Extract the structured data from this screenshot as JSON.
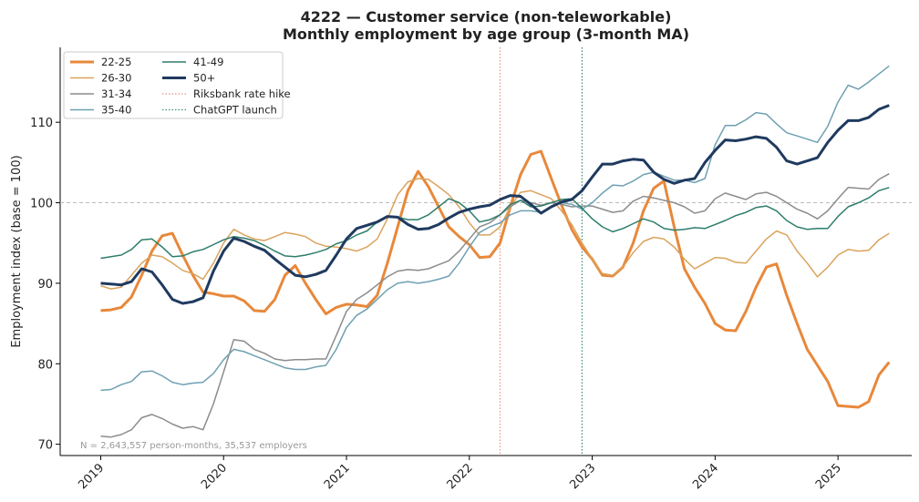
{
  "chart_data": {
    "type": "line",
    "title": "4222 — Customer service (non-teleworkable)",
    "subtitle": "Monthly employment by age group (3-month MA)",
    "ylabel": "Employment index (base = 100)",
    "note": "N = 2,643,557 person-months, 35,537 employers",
    "x": [
      2019,
      2019.083,
      2019.167,
      2019.25,
      2019.333,
      2019.417,
      2019.5,
      2019.583,
      2019.667,
      2019.75,
      2019.833,
      2019.917,
      2020,
      2020.083,
      2020.167,
      2020.25,
      2020.333,
      2020.417,
      2020.5,
      2020.583,
      2020.667,
      2020.75,
      2020.833,
      2020.917,
      2021,
      2021.083,
      2021.167,
      2021.25,
      2021.333,
      2021.417,
      2021.5,
      2021.583,
      2021.667,
      2021.75,
      2021.833,
      2021.917,
      2022,
      2022.083,
      2022.167,
      2022.25,
      2022.333,
      2022.417,
      2022.5,
      2022.583,
      2022.667,
      2022.75,
      2022.833,
      2022.917,
      2023,
      2023.083,
      2023.167,
      2023.25,
      2023.333,
      2023.417,
      2023.5,
      2023.583,
      2023.667,
      2023.75,
      2023.833,
      2023.917,
      2024,
      2024.083,
      2024.167,
      2024.25,
      2024.333,
      2024.417,
      2024.5,
      2024.583,
      2024.667,
      2024.75,
      2024.833,
      2024.917,
      2025,
      2025.083,
      2025.167,
      2025.25,
      2025.333,
      2025.417
    ],
    "series": [
      {
        "name": "22-25",
        "color": "#e8883a",
        "linewidth": 3,
        "values": [
          86.6,
          86.7,
          87,
          88.3,
          91,
          94,
          95.9,
          96.2,
          93.5,
          91,
          88.9,
          88.7,
          88.4,
          88.4,
          87.8,
          86.6,
          86.5,
          88,
          91,
          92.2,
          90,
          88,
          86.2,
          87,
          87.4,
          87.3,
          87.1,
          88.5,
          92.5,
          97,
          101.5,
          103.9,
          102,
          99.5,
          97,
          95.8,
          94.8,
          93.2,
          93.3,
          95,
          99.5,
          103.5,
          106,
          106.4,
          103,
          99.7,
          96.7,
          94.5,
          93,
          91,
          90.9,
          92,
          95,
          99,
          101.8,
          102.7,
          97,
          91.8,
          89.5,
          87.5,
          85,
          84.2,
          84.1,
          86.5,
          89.5,
          92,
          92.4,
          88.5,
          85,
          81.8,
          79.8,
          77.8,
          74.8,
          74.7,
          74.6,
          75.3,
          78.6,
          80.2
        ]
      },
      {
        "name": "26-30",
        "color": "#dba35c",
        "linewidth": 1.5,
        "values": [
          89.7,
          89.3,
          89.5,
          91,
          92.5,
          93.5,
          93.3,
          92.5,
          91.6,
          91.2,
          90.5,
          92.5,
          95,
          96.7,
          96,
          95.5,
          95.3,
          95.8,
          96.3,
          96.1,
          95.8,
          95,
          94.6,
          94.5,
          94.3,
          94,
          94.5,
          95.5,
          98,
          101,
          102.6,
          103,
          102.9,
          102,
          101,
          99.5,
          97.5,
          96,
          96,
          97,
          99.5,
          101.3,
          101.5,
          101,
          100.5,
          99,
          97.3,
          95,
          93,
          91.2,
          91,
          92,
          93.8,
          95.2,
          95.7,
          95.5,
          94.5,
          93,
          91.8,
          92.5,
          93.2,
          93.1,
          92.6,
          92.5,
          94,
          95.5,
          96.5,
          96,
          94,
          92.5,
          90.8,
          92,
          93.5,
          94.2,
          94,
          94.1,
          95.4,
          96.2
        ]
      },
      {
        "name": "31-34",
        "color": "#8c8c8c",
        "linewidth": 1.5,
        "values": [
          71,
          70.9,
          71.2,
          71.8,
          73.3,
          73.7,
          73.2,
          72.5,
          72,
          72.2,
          71.8,
          75,
          79,
          83,
          82.8,
          81.8,
          81.3,
          80.6,
          80.4,
          80.5,
          80.5,
          80.6,
          80.6,
          83.5,
          86.5,
          88,
          88.8,
          89.8,
          90.8,
          91.5,
          91.7,
          91.6,
          91.8,
          92.3,
          92.8,
          94,
          95.5,
          97,
          97.5,
          98.5,
          99.5,
          100.3,
          100,
          99.7,
          100,
          99.8,
          99.5,
          99.6,
          99.6,
          99.2,
          98.8,
          99,
          100.2,
          100.8,
          100.6,
          100.3,
          100,
          99.5,
          98.7,
          99,
          100.5,
          101.2,
          100.8,
          100.4,
          101.1,
          101.3,
          100.8,
          100,
          99.2,
          98.7,
          98,
          99,
          100.5,
          101.9,
          101.8,
          101.7,
          102.9,
          103.6
        ]
      },
      {
        "name": "35-40",
        "color": "#6fa0b2",
        "linewidth": 1.5,
        "values": [
          76.7,
          76.8,
          77.4,
          77.8,
          79,
          79.1,
          78.5,
          77.7,
          77.4,
          77.6,
          77.7,
          78.8,
          80.5,
          81.8,
          81.5,
          81,
          80.5,
          80,
          79.5,
          79.3,
          79.3,
          79.6,
          79.8,
          81.8,
          84.5,
          86,
          86.8,
          88,
          89.2,
          90,
          90.2,
          90,
          90.2,
          90.5,
          90.9,
          92.5,
          94.5,
          96.3,
          97,
          97.5,
          98.5,
          99,
          99,
          98.8,
          99.5,
          100,
          99.8,
          99.2,
          100,
          101.2,
          102.2,
          102.1,
          102.7,
          103.5,
          103.8,
          103.3,
          102.8,
          102.8,
          102.5,
          103,
          107.2,
          109.6,
          109.6,
          110.3,
          111.2,
          111,
          109.8,
          108.7,
          108.3,
          107.9,
          107.5,
          109.5,
          112.5,
          114.6,
          114.1,
          115,
          116,
          117
        ]
      },
      {
        "name": "41-49",
        "color": "#2e7d6b",
        "linewidth": 1.5,
        "values": [
          93.1,
          93.3,
          93.5,
          94.2,
          95.4,
          95.5,
          94.5,
          93.3,
          93.4,
          93.9,
          94.2,
          94.8,
          95.4,
          95.8,
          95.6,
          95.3,
          94.7,
          94,
          93.4,
          93.3,
          93.5,
          93.8,
          94.2,
          94.9,
          95.3,
          96,
          96.5,
          97.6,
          98.2,
          98.2,
          97.9,
          97.9,
          98.5,
          99.5,
          100.5,
          100,
          99,
          97.6,
          97.9,
          98.5,
          99.8,
          100.3,
          99.5,
          99.6,
          100,
          100.4,
          100.5,
          99.3,
          98,
          97,
          96.4,
          96.8,
          97.4,
          98,
          97.6,
          96.8,
          96.6,
          96.7,
          96.9,
          96.8,
          97.3,
          97.8,
          98.4,
          98.8,
          99.4,
          99.6,
          99,
          97.8,
          97,
          96.7,
          96.8,
          96.8,
          98.3,
          99.5,
          100,
          100.6,
          101.5,
          101.9
        ]
      },
      {
        "name": "50+",
        "color": "#1f3a5f",
        "linewidth": 3,
        "values": [
          90,
          89.9,
          89.8,
          90.2,
          91.8,
          91.4,
          89.8,
          88,
          87.5,
          87.7,
          88.2,
          91.5,
          94,
          95.6,
          95.2,
          94.6,
          94.1,
          93,
          92,
          91,
          90.8,
          91.1,
          91.6,
          93.5,
          95.5,
          96.8,
          97.2,
          97.6,
          98.3,
          98.2,
          97.3,
          96.7,
          96.8,
          97.3,
          98.1,
          98.8,
          99.2,
          99.5,
          99.7,
          100.4,
          100.9,
          100.8,
          99.8,
          98.7,
          99.5,
          100.1,
          100.4,
          101.5,
          103.2,
          104.8,
          104.8,
          105.2,
          105.4,
          105.3,
          103.8,
          102.9,
          102.4,
          102.8,
          103,
          105,
          106.5,
          107.8,
          107.7,
          107.9,
          108.2,
          108,
          106.9,
          105.2,
          104.8,
          105.2,
          105.6,
          107.5,
          109,
          110.2,
          110.2,
          110.6,
          111.6,
          112.1
        ]
      }
    ],
    "events": [
      {
        "name": "Riksbank rate hike",
        "x": 2022.25,
        "color": "#e8908a"
      },
      {
        "name": "ChatGPT launch",
        "x": 2022.917,
        "color": "#3a8c75"
      }
    ],
    "hline": 100,
    "xlim": [
      2018.67,
      2025.6
    ],
    "xticks": [
      2019,
      2020,
      2021,
      2022,
      2023,
      2024,
      2025
    ],
    "ylim": [
      68.6,
      119.3
    ],
    "yticks": [
      70,
      80,
      90,
      100,
      110
    ],
    "legend": "upper left"
  }
}
